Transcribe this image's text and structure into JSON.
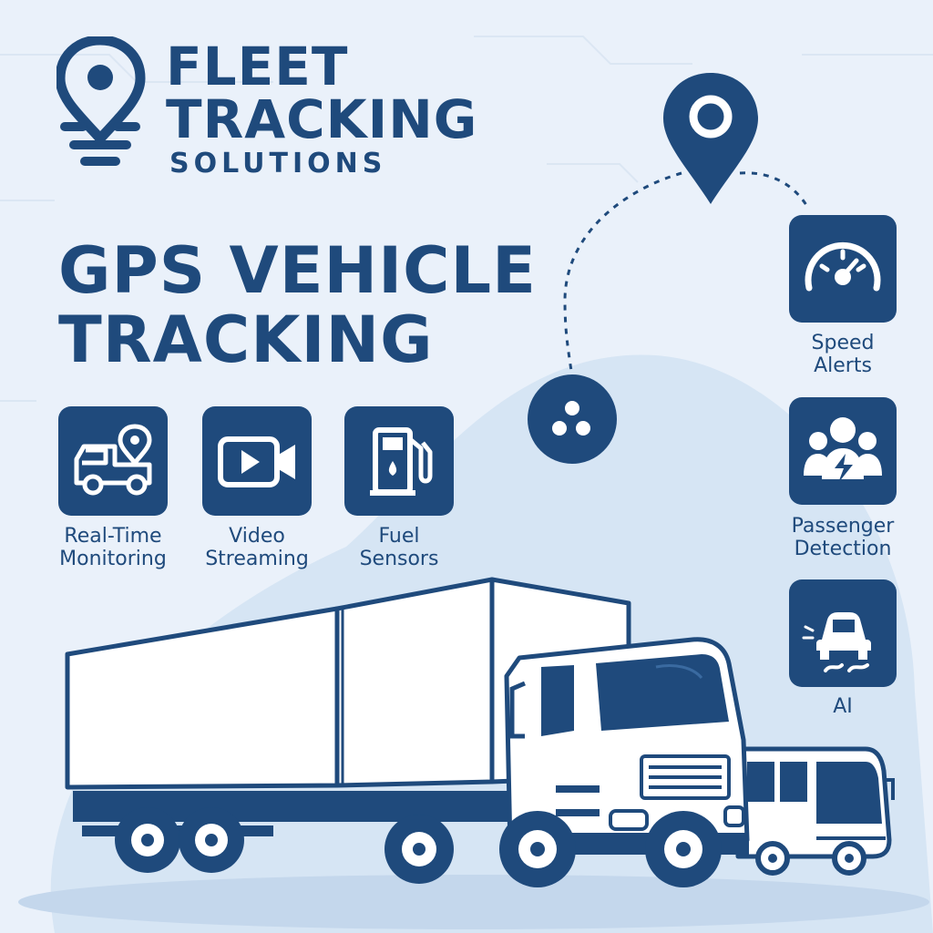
{
  "brand": {
    "title_line1": "FLEET",
    "title_line2": "TRACKING",
    "subtitle": "SOLUTIONS",
    "logo_icon": "location-pin-icon"
  },
  "headline": {
    "line1": "GPS VEHICLE",
    "line2": "TRACKING"
  },
  "features": [
    {
      "label_line1": "Real-Time",
      "label_line2": "Monitoring",
      "icon": "truck-location-icon"
    },
    {
      "label_line1": "Video",
      "label_line2": "Streaming",
      "icon": "video-camera-icon"
    },
    {
      "label_line1": "Fuel",
      "label_line2": "Sensors",
      "icon": "fuel-pump-icon"
    }
  ],
  "side_features": [
    {
      "label_line1": "Speed",
      "label_line2": "Alerts",
      "icon": "speedometer-icon"
    },
    {
      "label_line1": "Passenger",
      "label_line2": "Detection",
      "icon": "passenger-detection-icon"
    },
    {
      "label_line1": "AI",
      "label_line2": "",
      "icon": "skid-car-icon"
    }
  ],
  "colors": {
    "navy": "#1f4a7c",
    "background": "#eaf1fa",
    "blob": "#d6e5f4",
    "white": "#ffffff"
  }
}
